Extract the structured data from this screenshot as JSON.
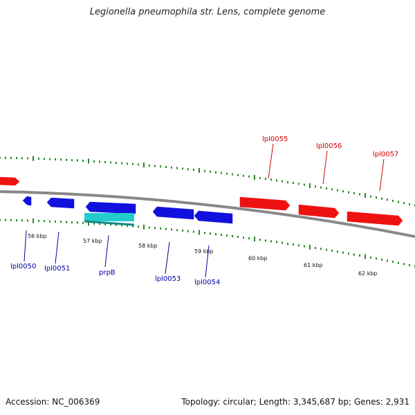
{
  "title": "Legionella pneumophila str. Lens, complete genome",
  "footer": {
    "accession": "Accession: NC_006369",
    "summary": "Topology: circular; Length: 3,345,687 bp; Genes: 2,931"
  },
  "colors": {
    "forward_gene": "#ee1111",
    "reverse_gene": "#1111dd",
    "rna_gene": "#22cccc",
    "backbone": "#888888",
    "ticks": "#228822",
    "forward_label": "#cc0000",
    "reverse_label": "#000099"
  },
  "scale_labels": [
    "56 kbp",
    "57 kbp",
    "58 kbp",
    "59 kbp",
    "60 kbp",
    "61 kbp",
    "62 kbp"
  ],
  "genes": [
    {
      "name": "",
      "strand": "forward",
      "type": "cds"
    },
    {
      "name": "lpl0050",
      "strand": "reverse",
      "type": "cds"
    },
    {
      "name": "lpl0051",
      "strand": "reverse",
      "type": "cds"
    },
    {
      "name": "prpB",
      "strand": "reverse",
      "type": "cds"
    },
    {
      "name": "",
      "strand": "reverse",
      "type": "rna"
    },
    {
      "name": "lpl0053",
      "strand": "reverse",
      "type": "cds"
    },
    {
      "name": "lpl0054",
      "strand": "reverse",
      "type": "cds"
    },
    {
      "name": "lpl0055",
      "strand": "forward",
      "type": "cds"
    },
    {
      "name": "lpl0056",
      "strand": "forward",
      "type": "cds"
    },
    {
      "name": "lpl0057",
      "strand": "forward",
      "type": "cds"
    }
  ]
}
